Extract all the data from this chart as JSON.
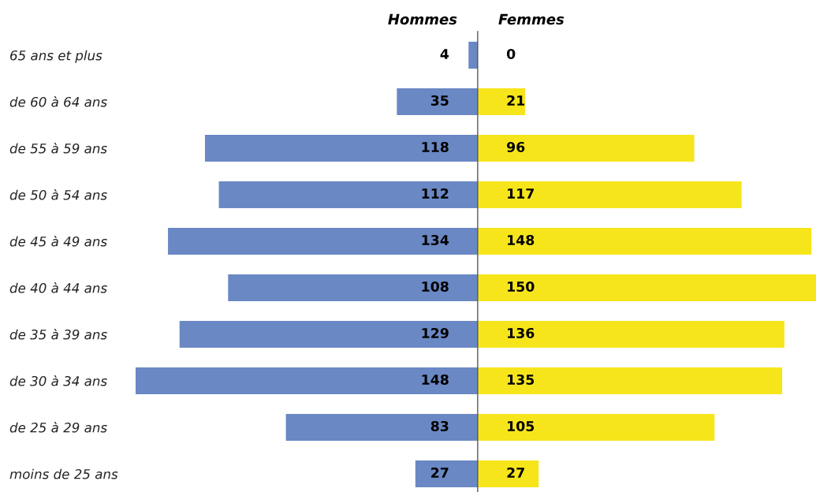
{
  "chart_data": [
    {
      "type": "bar",
      "orientation": "horizontal",
      "title": "Hommes",
      "categories": [
        "65 ans et plus",
        "de 60 à 64 ans",
        "de 55 à 59 ans",
        "de 50 à 54 ans",
        "de 45 à 49 ans",
        "de 40 à 44 ans",
        "de 35 à 39 ans",
        "de 30 à 34 ans",
        "de 25 à 29 ans",
        "moins de 25 ans"
      ],
      "values": [
        4,
        35,
        118,
        112,
        134,
        108,
        129,
        148,
        83,
        27
      ],
      "color": "#6a88c4",
      "data_labels": true,
      "tick_labels": "y"
    },
    {
      "type": "bar",
      "orientation": "horizontal",
      "title": "Femmes",
      "categories": [
        null,
        null,
        null,
        null,
        null,
        null,
        null,
        null,
        null,
        null
      ],
      "values": [
        0,
        21,
        96,
        117,
        148,
        150,
        136,
        135,
        105,
        27
      ],
      "color": "#f7e51c",
      "data_labels": true,
      "tick_labels": false
    }
  ]
}
